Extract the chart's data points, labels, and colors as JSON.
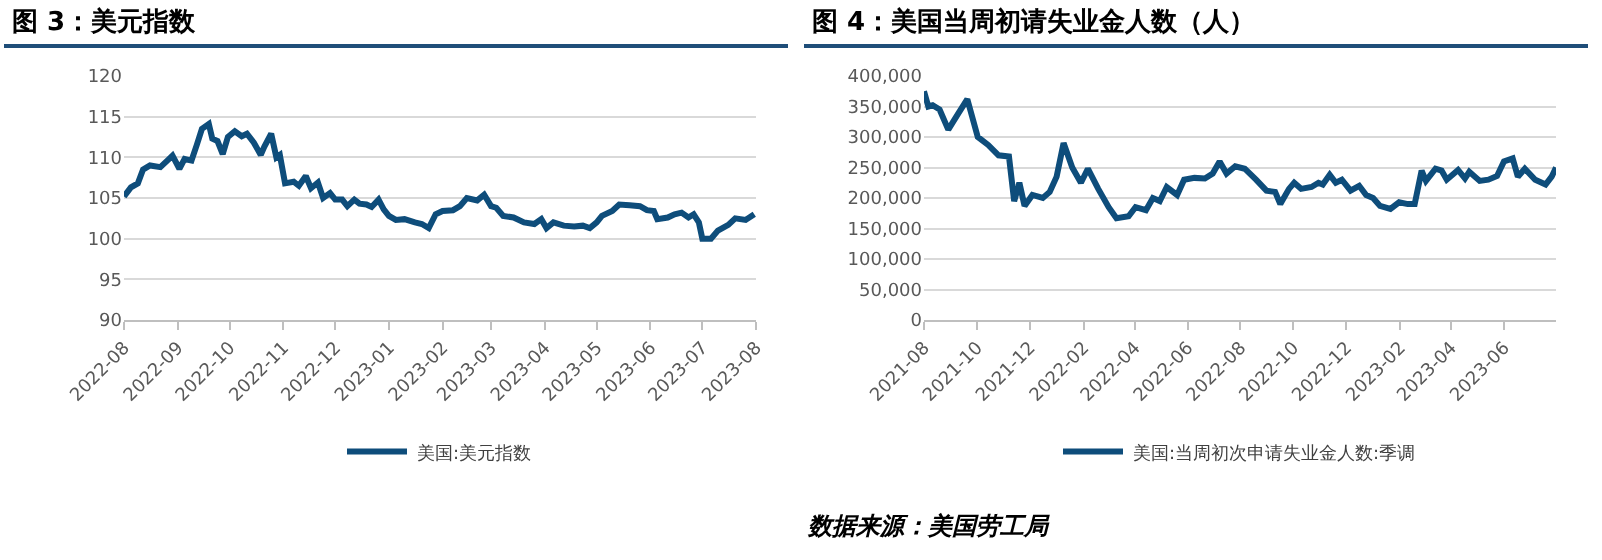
{
  "chart_data": [
    {
      "type": "line",
      "title": "图 3：美元指数",
      "xlim": [
        "2022-08-01",
        "2023-08-01"
      ],
      "ylim": [
        90,
        120
      ],
      "yticks": [
        90,
        95,
        100,
        105,
        110,
        115,
        120
      ],
      "xticks": [
        "2022-08",
        "2022-09",
        "2022-10",
        "2022-11",
        "2022-12",
        "2023-01",
        "2023-02",
        "2023-03",
        "2023-04",
        "2023-05",
        "2023-06",
        "2023-07",
        "2023-08"
      ],
      "grid": "y",
      "legend": "bottom",
      "series": [
        {
          "name": "美国:美元指数",
          "color": "#0e4d7b",
          "x": [
            "2022-08-01",
            "2022-08-05",
            "2022-08-09",
            "2022-08-12",
            "2022-08-16",
            "2022-08-22",
            "2022-08-26",
            "2022-08-29",
            "2022-09-02",
            "2022-09-05",
            "2022-09-09",
            "2022-09-12",
            "2022-09-15",
            "2022-09-19",
            "2022-09-21",
            "2022-09-24",
            "2022-09-27",
            "2022-09-30",
            "2022-10-04",
            "2022-10-08",
            "2022-10-11",
            "2022-10-15",
            "2022-10-19",
            "2022-10-21",
            "2022-10-25",
            "2022-10-28",
            "2022-10-30",
            "2022-11-02",
            "2022-11-07",
            "2022-11-10",
            "2022-11-14",
            "2022-11-17",
            "2022-11-21",
            "2022-11-24",
            "2022-11-28",
            "2022-12-01",
            "2022-12-05",
            "2022-12-08",
            "2022-12-12",
            "2022-12-15",
            "2022-12-19",
            "2022-12-22",
            "2022-12-26",
            "2022-12-29",
            "2023-01-01",
            "2023-01-05",
            "2023-01-10",
            "2023-01-16",
            "2023-01-20",
            "2023-01-24",
            "2023-01-28",
            "2023-02-01",
            "2023-02-07",
            "2023-02-11",
            "2023-02-15",
            "2023-02-21",
            "2023-02-25",
            "2023-03-01",
            "2023-03-04",
            "2023-03-08",
            "2023-03-14",
            "2023-03-20",
            "2023-03-26",
            "2023-03-30",
            "2023-04-02",
            "2023-04-06",
            "2023-04-12",
            "2023-04-18",
            "2023-04-23",
            "2023-04-27",
            "2023-05-01",
            "2023-05-04",
            "2023-05-10",
            "2023-05-14",
            "2023-05-20",
            "2023-05-26",
            "2023-05-30",
            "2023-06-03",
            "2023-06-05",
            "2023-06-11",
            "2023-06-15",
            "2023-06-19",
            "2023-06-23",
            "2023-06-26",
            "2023-06-29",
            "2023-07-01",
            "2023-07-06",
            "2023-07-10",
            "2023-07-16",
            "2023-07-20",
            "2023-07-26",
            "2023-07-31"
          ],
          "values": [
            105.2,
            106.3,
            106.8,
            108.5,
            109.0,
            108.8,
            109.6,
            110.2,
            108.6,
            109.8,
            109.6,
            111.5,
            113.5,
            114.1,
            112.3,
            112.0,
            110.4,
            112.5,
            113.2,
            112.6,
            112.9,
            111.8,
            110.3,
            111.3,
            112.9,
            110.0,
            110.3,
            106.8,
            107.0,
            106.5,
            107.7,
            106.2,
            106.9,
            105.0,
            105.6,
            104.8,
            104.8,
            104.0,
            104.8,
            104.3,
            104.2,
            103.9,
            104.8,
            103.6,
            102.8,
            102.3,
            102.4,
            102.0,
            101.8,
            101.3,
            103.0,
            103.4,
            103.5,
            104.0,
            105.0,
            104.7,
            105.4,
            104.0,
            103.8,
            102.8,
            102.6,
            102.0,
            101.8,
            102.4,
            101.3,
            102.0,
            101.6,
            101.5,
            101.6,
            101.3,
            102.0,
            102.8,
            103.4,
            104.2,
            104.1,
            104.0,
            103.5,
            103.4,
            102.4,
            102.6,
            103.0,
            103.2,
            102.6,
            103.0,
            102.0,
            100.0,
            100.0,
            101.0,
            101.7,
            102.5,
            102.3,
            103.0
          ]
        }
      ]
    },
    {
      "type": "line",
      "title": "图 4：美国当周初请失业金人数（人）",
      "xlim": [
        "2021-08-01",
        "2023-07-31"
      ],
      "ylim": [
        0,
        400000
      ],
      "yticks": [
        0,
        {
          "value": 50000,
          "label": "50,000"
        },
        {
          "value": 100000,
          "label": "100,000"
        },
        {
          "value": 150000,
          "label": "150,000"
        },
        {
          "value": 200000,
          "label": "200,000"
        },
        {
          "value": 250000,
          "label": "250,000"
        },
        {
          "value": 300000,
          "label": "300,000"
        },
        {
          "value": 350000,
          "label": "350,000"
        },
        {
          "value": 400000,
          "label": "400,000"
        }
      ],
      "xticks": [
        "2021-08",
        "2021-10",
        "2021-12",
        "2022-02",
        "2022-04",
        "2022-06",
        "2022-08",
        "2022-10",
        "2022-12",
        "2023-02",
        "2023-04",
        "2023-06"
      ],
      "grid": "y",
      "legend": "bottom",
      "annotations": [
        "数据来源：美国劳工局"
      ],
      "series": [
        {
          "name": "美国:当周初次申请失业金人数:季调",
          "color": "#0e4d7b",
          "x": [
            "2021-08-01",
            "2021-08-06",
            "2021-08-11",
            "2021-08-19",
            "2021-08-29",
            "2021-09-08",
            "2021-09-20",
            "2021-10-02",
            "2021-10-14",
            "2021-10-26",
            "2021-11-07",
            "2021-11-13",
            "2021-11-19",
            "2021-11-25",
            "2021-12-04",
            "2021-12-16",
            "2021-12-24",
            "2022-01-01",
            "2022-01-09",
            "2022-01-19",
            "2022-01-29",
            "2022-02-06",
            "2022-02-18",
            "2022-03-02",
            "2022-03-11",
            "2022-03-25",
            "2022-04-02",
            "2022-04-14",
            "2022-04-22",
            "2022-04-30",
            "2022-05-08",
            "2022-05-20",
            "2022-05-28",
            "2022-06-09",
            "2022-06-21",
            "2022-06-30",
            "2022-07-08",
            "2022-07-16",
            "2022-07-26",
            "2022-08-06",
            "2022-08-19",
            "2022-08-31",
            "2022-09-10",
            "2022-09-16",
            "2022-09-26",
            "2022-10-02",
            "2022-10-10",
            "2022-10-22",
            "2022-10-30",
            "2022-11-04",
            "2022-11-12",
            "2022-11-19",
            "2022-11-26",
            "2022-12-06",
            "2022-12-16",
            "2022-12-24",
            "2023-01-01",
            "2023-01-09",
            "2023-01-21",
            "2023-01-31",
            "2023-02-10",
            "2023-02-18",
            "2023-02-26",
            "2023-03-03",
            "2023-03-14",
            "2023-03-21",
            "2023-03-27",
            "2023-04-09",
            "2023-04-17",
            "2023-04-22",
            "2023-05-04",
            "2023-05-14",
            "2023-05-24",
            "2023-06-01",
            "2023-06-11",
            "2023-06-17",
            "2023-06-25",
            "2023-07-07",
            "2023-07-19",
            "2023-07-26",
            "2023-07-31"
          ],
          "values": [
            375000,
            350000,
            352000,
            345000,
            312000,
            335000,
            362000,
            300000,
            287000,
            270000,
            268000,
            195000,
            225000,
            187000,
            205000,
            200000,
            210000,
            235000,
            290000,
            250000,
            225000,
            248000,
            215000,
            185000,
            167000,
            170000,
            185000,
            180000,
            200000,
            195000,
            218000,
            205000,
            230000,
            233000,
            232000,
            240000,
            260000,
            240000,
            252000,
            248000,
            230000,
            212000,
            210000,
            190000,
            215000,
            225000,
            215000,
            218000,
            225000,
            222000,
            238000,
            225000,
            230000,
            212000,
            220000,
            205000,
            200000,
            187000,
            182000,
            193000,
            190000,
            190000,
            245000,
            228000,
            248000,
            245000,
            230000,
            246000,
            232000,
            243000,
            228000,
            230000,
            236000,
            260000,
            265000,
            235000,
            248000,
            230000,
            222000,
            235000,
            250000
          ]
        }
      ]
    }
  ]
}
